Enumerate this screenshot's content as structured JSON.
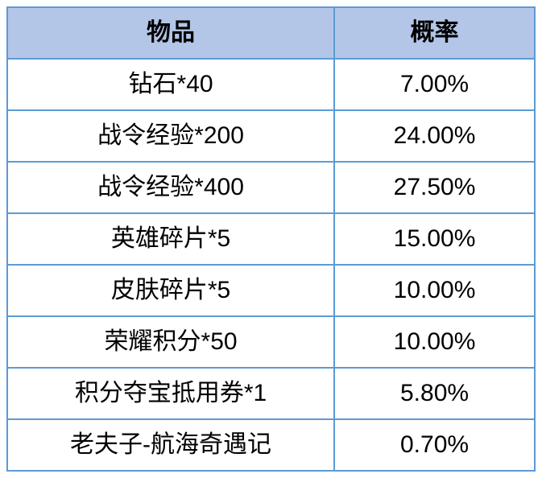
{
  "table": {
    "type": "table",
    "columns": [
      {
        "header": "物品",
        "width_pct": 62,
        "align": "center"
      },
      {
        "header": "概率",
        "width_pct": 38,
        "align": "center"
      }
    ],
    "rows": [
      [
        "钻石*40",
        "7.00%"
      ],
      [
        "战令经验*200",
        "24.00%"
      ],
      [
        "战令经验*400",
        "27.50%"
      ],
      [
        "英雄碎片*5",
        "15.00%"
      ],
      [
        "皮肤碎片*5",
        "10.00%"
      ],
      [
        "荣耀积分*50",
        "10.00%"
      ],
      [
        "积分夺宝抵用券*1",
        "5.80%"
      ],
      [
        "老夫子-航海奇遇记",
        "0.70%"
      ]
    ],
    "header_bg_color": "#b4c6e7",
    "body_bg_color": "#ffffff",
    "border_color": "#5b9bd5",
    "border_width": 2,
    "font_size": 30,
    "header_font_weight": "bold",
    "text_color": "#000000"
  }
}
